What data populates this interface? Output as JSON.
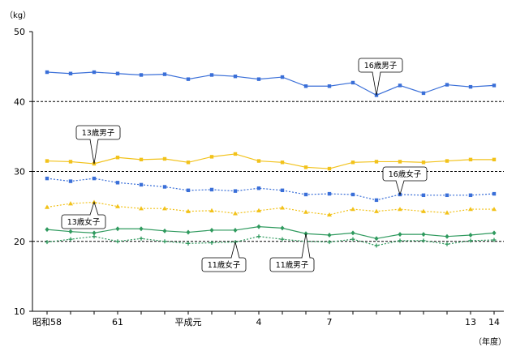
{
  "chart_data": {
    "type": "line",
    "y_unit_label": "（kg）",
    "x_unit_label": "（年度）",
    "ylim": [
      10,
      50
    ],
    "y_ticks": [
      10,
      20,
      30,
      40,
      50
    ],
    "dashed_gridlines": [
      20,
      30,
      40
    ],
    "x_tick_labels": [
      {
        "index": 0,
        "label": "昭和58"
      },
      {
        "index": 3,
        "label": "61"
      },
      {
        "index": 6,
        "label": "平成元"
      },
      {
        "index": 9,
        "label": "4"
      },
      {
        "index": 12,
        "label": "7"
      },
      {
        "index": 18,
        "label": "13"
      },
      {
        "index": 19,
        "label": "14"
      }
    ],
    "series": [
      {
        "name": "16歳男子",
        "color": "#3a6fd8",
        "marker": "square",
        "line": "solid",
        "values": [
          44.2,
          44.0,
          44.2,
          44.0,
          43.8,
          43.9,
          43.2,
          43.8,
          43.6,
          43.2,
          43.5,
          42.2,
          42.2,
          42.7,
          40.9,
          42.3,
          41.2,
          42.4,
          42.1,
          42.3
        ]
      },
      {
        "name": "13歳男子",
        "color": "#f2c21a",
        "marker": "square",
        "line": "solid",
        "values": [
          31.5,
          31.4,
          31.1,
          32.0,
          31.7,
          31.8,
          31.3,
          32.1,
          32.5,
          31.5,
          31.3,
          30.6,
          30.4,
          31.3,
          31.4,
          31.4,
          31.3,
          31.5,
          31.7,
          31.7
        ]
      },
      {
        "name": "16歳女子",
        "color": "#3a6fd8",
        "marker": "square",
        "line": "dotted",
        "values": [
          29.0,
          28.6,
          29.0,
          28.4,
          28.1,
          27.8,
          27.3,
          27.4,
          27.2,
          27.6,
          27.3,
          26.7,
          26.8,
          26.7,
          25.9,
          26.7,
          26.6,
          26.6,
          26.6,
          26.8
        ]
      },
      {
        "name": "13歳女子",
        "color": "#f2c21a",
        "marker": "triangle",
        "line": "dotted",
        "values": [
          24.9,
          25.4,
          25.6,
          25.0,
          24.7,
          24.7,
          24.3,
          24.4,
          24.0,
          24.4,
          24.8,
          24.2,
          23.8,
          24.6,
          24.3,
          24.6,
          24.3,
          24.1,
          24.6,
          24.6
        ]
      },
      {
        "name": "11歳男子",
        "color": "#2f9a5e",
        "marker": "diamond",
        "line": "solid",
        "values": [
          21.7,
          21.4,
          21.2,
          21.8,
          21.8,
          21.5,
          21.3,
          21.6,
          21.6,
          22.1,
          21.9,
          21.1,
          20.9,
          21.2,
          20.4,
          21.0,
          21.0,
          20.7,
          20.9,
          21.2
        ]
      },
      {
        "name": "11歳女子",
        "color": "#2f9a5e",
        "marker": "plus",
        "line": "dotted",
        "values": [
          19.9,
          20.3,
          20.7,
          20.0,
          20.4,
          20.0,
          19.7,
          19.8,
          19.9,
          20.7,
          20.3,
          20.0,
          19.9,
          20.3,
          19.4,
          20.1,
          20.1,
          19.6,
          20.1,
          20.2
        ]
      }
    ]
  }
}
